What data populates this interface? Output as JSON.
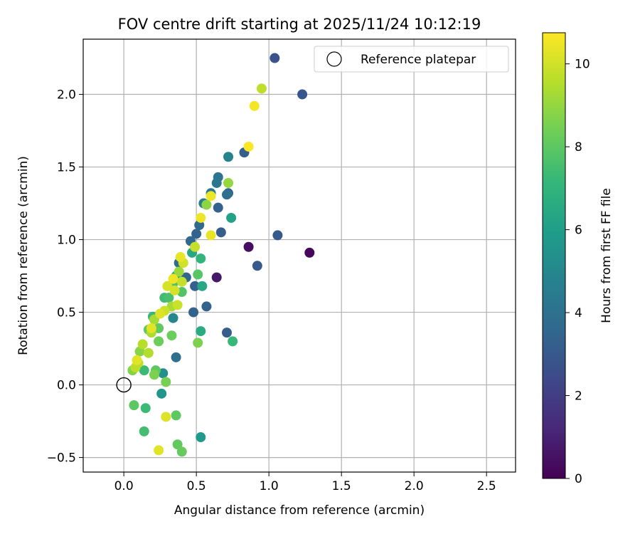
{
  "chart_data": {
    "type": "scatter",
    "title": "FOV centre drift starting at 2025/11/24 10:12:19",
    "xlabel": "Angular distance from reference (arcmin)",
    "ylabel": "Rotation from reference (arcmin)",
    "xlim": [
      -0.28,
      2.7
    ],
    "ylim": [
      -0.6,
      2.38
    ],
    "xticks": [
      0.0,
      0.5,
      1.0,
      1.5,
      2.0,
      2.5
    ],
    "xtick_labels": [
      "0.0",
      "0.5",
      "1.0",
      "1.5",
      "2.0",
      "2.5"
    ],
    "yticks": [
      -0.5,
      0.0,
      0.5,
      1.0,
      1.5,
      2.0
    ],
    "ytick_labels": [
      "−0.5",
      "0.0",
      "0.5",
      "1.0",
      "1.5",
      "2.0"
    ],
    "grid": true,
    "legend": {
      "position": "top-right",
      "label": "Reference platepar"
    },
    "reference_point": {
      "x": 0.0,
      "y": 0.0
    },
    "colorbar": {
      "label": "Hours from first FF file",
      "range": [
        0,
        10.75
      ],
      "ticks": [
        0,
        2,
        4,
        6,
        8,
        10
      ],
      "tick_labels": [
        "0",
        "2",
        "4",
        "6",
        "8",
        "10"
      ],
      "colormap": [
        "#440154",
        "#482878",
        "#3e4989",
        "#31688e",
        "#26828e",
        "#1f9e89",
        "#35b779",
        "#6ece58",
        "#b5de2b",
        "#fde725"
      ]
    },
    "points": [
      {
        "x": 1.28,
        "y": 0.91,
        "h": 0.2
      },
      {
        "x": 0.86,
        "y": 0.95,
        "h": 0.4
      },
      {
        "x": 0.64,
        "y": 0.74,
        "h": 0.7
      },
      {
        "x": 1.04,
        "y": 2.25,
        "h": 2.8
      },
      {
        "x": 1.23,
        "y": 2.0,
        "h": 2.9
      },
      {
        "x": 1.06,
        "y": 1.03,
        "h": 3.0
      },
      {
        "x": 0.92,
        "y": 0.82,
        "h": 3.0
      },
      {
        "x": 0.83,
        "y": 1.6,
        "h": 3.2
      },
      {
        "x": 0.71,
        "y": 0.36,
        "h": 3.2
      },
      {
        "x": 0.67,
        "y": 1.05,
        "h": 3.2
      },
      {
        "x": 0.65,
        "y": 1.22,
        "h": 3.3
      },
      {
        "x": 0.72,
        "y": 1.32,
        "h": 3.5
      },
      {
        "x": 0.57,
        "y": 0.54,
        "h": 3.4
      },
      {
        "x": 0.48,
        "y": 0.5,
        "h": 3.4
      },
      {
        "x": 0.49,
        "y": 0.68,
        "h": 3.3
      },
      {
        "x": 0.5,
        "y": 1.04,
        "h": 3.4
      },
      {
        "x": 0.46,
        "y": 0.99,
        "h": 3.6
      },
      {
        "x": 0.52,
        "y": 1.1,
        "h": 3.7
      },
      {
        "x": 0.43,
        "y": 0.74,
        "h": 3.5
      },
      {
        "x": 0.38,
        "y": 0.84,
        "h": 3.8
      },
      {
        "x": 0.36,
        "y": 0.19,
        "h": 3.9
      },
      {
        "x": 0.71,
        "y": 1.31,
        "h": 4.0
      },
      {
        "x": 0.64,
        "y": 1.39,
        "h": 4.3
      },
      {
        "x": 0.65,
        "y": 1.43,
        "h": 4.2
      },
      {
        "x": 0.55,
        "y": 1.25,
        "h": 4.5
      },
      {
        "x": 0.6,
        "y": 1.32,
        "h": 4.4
      },
      {
        "x": 0.72,
        "y": 1.57,
        "h": 4.8
      },
      {
        "x": 0.34,
        "y": 0.46,
        "h": 5.0
      },
      {
        "x": 0.27,
        "y": 0.08,
        "h": 5.3
      },
      {
        "x": 0.26,
        "y": -0.06,
        "h": 5.6
      },
      {
        "x": 0.53,
        "y": -0.36,
        "h": 5.8
      },
      {
        "x": 0.74,
        "y": 1.15,
        "h": 6.2
      },
      {
        "x": 0.47,
        "y": 0.91,
        "h": 6.4
      },
      {
        "x": 0.54,
        "y": 0.68,
        "h": 6.4
      },
      {
        "x": 0.53,
        "y": 0.37,
        "h": 6.6
      },
      {
        "x": 0.36,
        "y": 0.75,
        "h": 6.8
      },
      {
        "x": 0.53,
        "y": 0.87,
        "h": 7.0
      },
      {
        "x": 0.75,
        "y": 0.3,
        "h": 7.2
      },
      {
        "x": 0.2,
        "y": 0.47,
        "h": 7.2
      },
      {
        "x": 0.14,
        "y": 0.1,
        "h": 7.3
      },
      {
        "x": 0.15,
        "y": -0.16,
        "h": 7.3
      },
      {
        "x": 0.14,
        "y": -0.32,
        "h": 7.5
      },
      {
        "x": 0.28,
        "y": 0.6,
        "h": 7.4
      },
      {
        "x": 0.31,
        "y": 0.6,
        "h": 7.6
      },
      {
        "x": 0.34,
        "y": 0.7,
        "h": 7.7
      },
      {
        "x": 0.4,
        "y": 0.64,
        "h": 7.8
      },
      {
        "x": 0.51,
        "y": 0.76,
        "h": 7.9
      },
      {
        "x": 0.22,
        "y": 0.1,
        "h": 8.0
      },
      {
        "x": 0.07,
        "y": -0.14,
        "h": 8.0
      },
      {
        "x": 0.36,
        "y": -0.21,
        "h": 8.0
      },
      {
        "x": 0.37,
        "y": -0.41,
        "h": 8.1
      },
      {
        "x": 0.4,
        "y": -0.46,
        "h": 8.2
      },
      {
        "x": 0.24,
        "y": 0.39,
        "h": 8.1
      },
      {
        "x": 0.17,
        "y": 0.38,
        "h": 8.1
      },
      {
        "x": 0.33,
        "y": 0.34,
        "h": 8.3
      },
      {
        "x": 0.24,
        "y": 0.3,
        "h": 8.3
      },
      {
        "x": 0.29,
        "y": 0.02,
        "h": 8.5
      },
      {
        "x": 0.51,
        "y": 0.29,
        "h": 8.6
      },
      {
        "x": 0.21,
        "y": 0.07,
        "h": 8.6
      },
      {
        "x": 0.06,
        "y": 0.1,
        "h": 8.7
      },
      {
        "x": 0.11,
        "y": 0.23,
        "h": 8.8
      },
      {
        "x": 0.57,
        "y": 1.24,
        "h": 8.9
      },
      {
        "x": 0.72,
        "y": 1.39,
        "h": 9.0
      },
      {
        "x": 0.38,
        "y": 0.78,
        "h": 9.1
      },
      {
        "x": 0.33,
        "y": 0.54,
        "h": 9.3
      },
      {
        "x": 0.21,
        "y": 0.45,
        "h": 9.3
      },
      {
        "x": 0.19,
        "y": 0.36,
        "h": 9.4
      },
      {
        "x": 0.17,
        "y": 0.22,
        "h": 9.5
      },
      {
        "x": 0.13,
        "y": 0.28,
        "h": 9.6
      },
      {
        "x": 0.1,
        "y": 0.15,
        "h": 9.6
      },
      {
        "x": 0.08,
        "y": 0.12,
        "h": 9.7
      },
      {
        "x": 0.95,
        "y": 2.04,
        "h": 9.7
      },
      {
        "x": 0.49,
        "y": 0.95,
        "h": 9.8
      },
      {
        "x": 0.4,
        "y": 0.71,
        "h": 9.8
      },
      {
        "x": 0.37,
        "y": 0.55,
        "h": 9.9
      },
      {
        "x": 0.28,
        "y": 0.51,
        "h": 9.9
      },
      {
        "x": 0.41,
        "y": 0.84,
        "h": 10.0
      },
      {
        "x": 0.35,
        "y": 0.65,
        "h": 10.1
      },
      {
        "x": 0.3,
        "y": 0.68,
        "h": 10.1
      },
      {
        "x": 0.25,
        "y": 0.49,
        "h": 10.2
      },
      {
        "x": 0.29,
        "y": -0.22,
        "h": 10.2
      },
      {
        "x": 0.24,
        "y": -0.45,
        "h": 10.3
      },
      {
        "x": 0.19,
        "y": 0.39,
        "h": 10.3
      },
      {
        "x": 0.09,
        "y": 0.17,
        "h": 10.3
      },
      {
        "x": 0.39,
        "y": 0.88,
        "h": 10.4
      },
      {
        "x": 0.6,
        "y": 1.03,
        "h": 10.4
      },
      {
        "x": 0.53,
        "y": 1.15,
        "h": 10.5
      },
      {
        "x": 0.6,
        "y": 1.3,
        "h": 10.5
      },
      {
        "x": 0.34,
        "y": 0.73,
        "h": 10.5
      },
      {
        "x": 0.9,
        "y": 1.92,
        "h": 10.6
      },
      {
        "x": 0.86,
        "y": 1.64,
        "h": 10.7
      }
    ]
  }
}
